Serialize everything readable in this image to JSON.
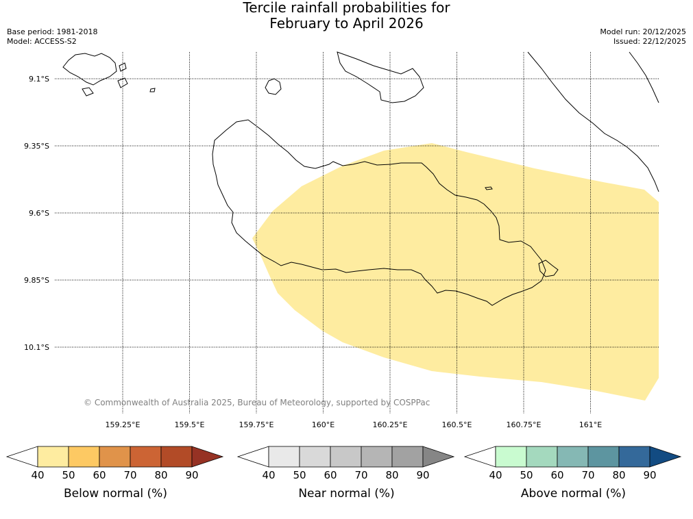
{
  "title": {
    "line1": "Tercile rainfall probabilities for",
    "line2": "February to April 2026"
  },
  "meta": {
    "base_period": "Base period: 1981-2018",
    "model": "Model: ACCESS-S2",
    "model_run": "Model run: 20/12/2025",
    "issued": "Issued: 22/12/2025"
  },
  "map": {
    "lon_range": [
      159.0,
      161.25
    ],
    "lat_range": [
      -10.35,
      -9.0
    ],
    "lat_ticks": [
      {
        "value": -9.1,
        "label": "9.1°S"
      },
      {
        "value": -9.35,
        "label": "9.35°S"
      },
      {
        "value": -9.6,
        "label": "9.6°S"
      },
      {
        "value": -9.85,
        "label": "9.85°S"
      },
      {
        "value": -10.1,
        "label": "10.1°S"
      }
    ],
    "lon_ticks": [
      {
        "value": 159.25,
        "label": "159.25°E"
      },
      {
        "value": 159.5,
        "label": "159.5°E"
      },
      {
        "value": 159.75,
        "label": "159.75°E"
      },
      {
        "value": 160.0,
        "label": "160°E"
      },
      {
        "value": 160.25,
        "label": "160.25°E"
      },
      {
        "value": 160.5,
        "label": "160.5°E"
      },
      {
        "value": 160.75,
        "label": "160.75°E"
      },
      {
        "value": 161.0,
        "label": "161°E"
      }
    ],
    "gridlines": true,
    "shaded_region": {
      "category": "Below normal",
      "probability_band": "40-50",
      "color": "#feeca0"
    },
    "copyright": "© Commonwealth of Australia 2025, Bureau of Meteorology, supported by COSPPac"
  },
  "colorbars": [
    {
      "name": "below",
      "label": "Below normal (%)",
      "ticks": [
        "40",
        "50",
        "60",
        "70",
        "80",
        "90"
      ],
      "colors": [
        "#ffffff",
        "#feeca0",
        "#fdc963",
        "#e0934a",
        "#cc6434",
        "#b24b27",
        "#963224"
      ]
    },
    {
      "name": "near",
      "label": "Near normal (%)",
      "ticks": [
        "40",
        "50",
        "60",
        "70",
        "80",
        "90"
      ],
      "colors": [
        "#ffffff",
        "#e9e9e9",
        "#d9d9d9",
        "#c8c8c8",
        "#b5b5b5",
        "#a2a2a2",
        "#868686"
      ]
    },
    {
      "name": "above",
      "label": "Above normal (%)",
      "ticks": [
        "40",
        "50",
        "60",
        "70",
        "80",
        "90"
      ],
      "colors": [
        "#ffffff",
        "#c9fbd0",
        "#a4d9be",
        "#85b8b4",
        "#5d95a0",
        "#34699a",
        "#124b82"
      ]
    }
  ]
}
